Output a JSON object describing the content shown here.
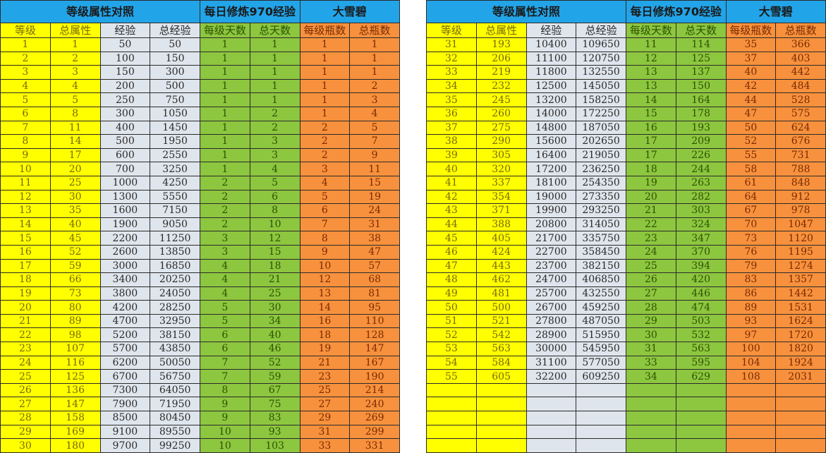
{
  "colors": {
    "header": "#22a4e8",
    "level": "#ffff00",
    "exp": "#dfe5ec",
    "days": "#8dc63f",
    "bottles": "#f7913d"
  },
  "group_headers": [
    "等级属性对照",
    "每日修炼970经验",
    "大雪碧"
  ],
  "column_headers": [
    "等级",
    "总属性",
    "经验",
    "总经验",
    "每级天数",
    "总天数",
    "每级瓶数",
    "总瓶数"
  ],
  "left_table": {
    "rows": [
      [
        "1",
        "1",
        "50",
        "50",
        "1",
        "1",
        "1",
        "1"
      ],
      [
        "2",
        "2",
        "100",
        "150",
        "1",
        "1",
        "1",
        "1"
      ],
      [
        "3",
        "3",
        "150",
        "300",
        "1",
        "1",
        "1",
        "1"
      ],
      [
        "4",
        "4",
        "200",
        "500",
        "1",
        "1",
        "1",
        "2"
      ],
      [
        "5",
        "5",
        "250",
        "750",
        "1",
        "1",
        "1",
        "3"
      ],
      [
        "6",
        "8",
        "300",
        "1050",
        "1",
        "2",
        "1",
        "4"
      ],
      [
        "7",
        "11",
        "400",
        "1450",
        "1",
        "2",
        "2",
        "5"
      ],
      [
        "8",
        "14",
        "500",
        "1950",
        "1",
        "3",
        "2",
        "7"
      ],
      [
        "9",
        "17",
        "600",
        "2550",
        "1",
        "3",
        "2",
        "9"
      ],
      [
        "10",
        "20",
        "700",
        "3250",
        "1",
        "4",
        "3",
        "11"
      ],
      [
        "11",
        "25",
        "1000",
        "4250",
        "2",
        "5",
        "4",
        "15"
      ],
      [
        "12",
        "30",
        "1300",
        "5550",
        "2",
        "6",
        "5",
        "19"
      ],
      [
        "13",
        "35",
        "1600",
        "7150",
        "2",
        "8",
        "6",
        "24"
      ],
      [
        "14",
        "40",
        "1900",
        "9050",
        "2",
        "10",
        "7",
        "31"
      ],
      [
        "15",
        "45",
        "2200",
        "11250",
        "3",
        "12",
        "8",
        "38"
      ],
      [
        "16",
        "52",
        "2600",
        "13850",
        "3",
        "15",
        "9",
        "47"
      ],
      [
        "17",
        "59",
        "3000",
        "16850",
        "4",
        "18",
        "10",
        "57"
      ],
      [
        "18",
        "66",
        "3400",
        "20250",
        "4",
        "21",
        "12",
        "68"
      ],
      [
        "19",
        "73",
        "3800",
        "24050",
        "4",
        "25",
        "13",
        "81"
      ],
      [
        "20",
        "80",
        "4200",
        "28250",
        "5",
        "30",
        "14",
        "95"
      ],
      [
        "21",
        "89",
        "4700",
        "32950",
        "5",
        "34",
        "16",
        "110"
      ],
      [
        "22",
        "98",
        "5200",
        "38150",
        "6",
        "40",
        "18",
        "128"
      ],
      [
        "23",
        "107",
        "5700",
        "43850",
        "6",
        "46",
        "19",
        "147"
      ],
      [
        "24",
        "116",
        "6200",
        "50050",
        "7",
        "52",
        "21",
        "167"
      ],
      [
        "25",
        "125",
        "6700",
        "56750",
        "7",
        "59",
        "23",
        "190"
      ],
      [
        "26",
        "136",
        "7300",
        "64050",
        "8",
        "67",
        "25",
        "214"
      ],
      [
        "27",
        "147",
        "7900",
        "71950",
        "9",
        "75",
        "27",
        "240"
      ],
      [
        "28",
        "158",
        "8500",
        "80450",
        "9",
        "83",
        "29",
        "269"
      ],
      [
        "29",
        "169",
        "9100",
        "89550",
        "10",
        "93",
        "31",
        "299"
      ],
      [
        "30",
        "180",
        "9700",
        "99250",
        "10",
        "103",
        "33",
        "331"
      ]
    ]
  },
  "right_table": {
    "rows": [
      [
        "31",
        "193",
        "10400",
        "109650",
        "11",
        "114",
        "35",
        "366"
      ],
      [
        "32",
        "206",
        "11100",
        "120750",
        "12",
        "125",
        "37",
        "403"
      ],
      [
        "33",
        "219",
        "11800",
        "132550",
        "13",
        "137",
        "40",
        "442"
      ],
      [
        "34",
        "232",
        "12500",
        "145050",
        "13",
        "150",
        "42",
        "484"
      ],
      [
        "35",
        "245",
        "13200",
        "158250",
        "14",
        "164",
        "44",
        "528"
      ],
      [
        "36",
        "260",
        "14000",
        "172250",
        "15",
        "178",
        "47",
        "575"
      ],
      [
        "37",
        "275",
        "14800",
        "187050",
        "16",
        "193",
        "50",
        "624"
      ],
      [
        "38",
        "290",
        "15600",
        "202650",
        "17",
        "209",
        "52",
        "676"
      ],
      [
        "39",
        "305",
        "16400",
        "219050",
        "17",
        "226",
        "55",
        "731"
      ],
      [
        "40",
        "320",
        "17200",
        "236250",
        "18",
        "244",
        "58",
        "788"
      ],
      [
        "41",
        "337",
        "18100",
        "254350",
        "19",
        "263",
        "61",
        "848"
      ],
      [
        "42",
        "354",
        "19000",
        "273350",
        "20",
        "282",
        "64",
        "912"
      ],
      [
        "43",
        "371",
        "19900",
        "293250",
        "21",
        "303",
        "67",
        "978"
      ],
      [
        "44",
        "388",
        "20800",
        "314050",
        "22",
        "324",
        "70",
        "1047"
      ],
      [
        "45",
        "405",
        "21700",
        "335750",
        "23",
        "347",
        "73",
        "1120"
      ],
      [
        "46",
        "424",
        "22700",
        "358450",
        "24",
        "370",
        "76",
        "1195"
      ],
      [
        "47",
        "443",
        "23700",
        "382150",
        "25",
        "394",
        "79",
        "1274"
      ],
      [
        "48",
        "462",
        "24700",
        "406850",
        "26",
        "420",
        "83",
        "1357"
      ],
      [
        "49",
        "481",
        "25700",
        "432550",
        "27",
        "446",
        "86",
        "1442"
      ],
      [
        "50",
        "500",
        "26700",
        "459250",
        "28",
        "474",
        "89",
        "1531"
      ],
      [
        "51",
        "521",
        "27800",
        "487050",
        "29",
        "503",
        "93",
        "1624"
      ],
      [
        "52",
        "542",
        "28900",
        "515950",
        "30",
        "532",
        "97",
        "1720"
      ],
      [
        "53",
        "563",
        "30000",
        "545950",
        "31",
        "563",
        "100",
        "1820"
      ],
      [
        "54",
        "584",
        "31100",
        "577050",
        "33",
        "595",
        "104",
        "1924"
      ],
      [
        "55",
        "605",
        "32200",
        "609250",
        "34",
        "629",
        "108",
        "2031"
      ],
      [
        "",
        "",
        "",
        "",
        "",
        "",
        "",
        ""
      ],
      [
        "",
        "",
        "",
        "",
        "",
        "",
        "",
        ""
      ],
      [
        "",
        "",
        "",
        "",
        "",
        "",
        "",
        ""
      ],
      [
        "",
        "",
        "",
        "",
        "",
        "",
        "",
        ""
      ],
      [
        "",
        "",
        "",
        "",
        "",
        "",
        "",
        ""
      ]
    ]
  }
}
